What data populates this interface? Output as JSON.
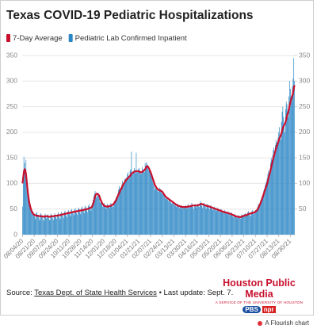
{
  "chart_data": {
    "type": "combo",
    "title": "Texas COVID-19 Pediatric Hospitalizations",
    "categories": [
      "08/04/20",
      null,
      null,
      null,
      null,
      null,
      null,
      null,
      null,
      null,
      null,
      null,
      null,
      null,
      null,
      null,
      null,
      "08/21/20",
      null,
      null,
      null,
      null,
      null,
      null,
      null,
      null,
      null,
      null,
      null,
      null,
      null,
      null,
      null,
      null,
      "09/07/20",
      null,
      null,
      null,
      null,
      null,
      null,
      null,
      null,
      null,
      null,
      null,
      null,
      null,
      null,
      null,
      null,
      "09/24/20",
      null,
      null,
      null,
      null,
      null,
      null,
      null,
      null,
      null,
      null,
      null,
      null,
      null,
      null,
      null,
      null,
      "10/11/20",
      null,
      null,
      null,
      null,
      null,
      null,
      null,
      null,
      null,
      null,
      null,
      null,
      null,
      null,
      null,
      null,
      "10/28/20",
      null,
      null,
      null,
      null,
      null,
      null,
      null,
      null,
      null,
      null,
      null,
      null,
      null,
      null,
      null,
      null,
      "11/14/20",
      null,
      null,
      null,
      null,
      null,
      null,
      null,
      null,
      null,
      null,
      null,
      null,
      null,
      null,
      null,
      null,
      "12/01/20",
      null,
      null,
      null,
      null,
      null,
      null,
      null,
      null,
      null,
      null,
      null,
      null,
      null,
      null,
      null,
      null,
      "12/18/20",
      null,
      null,
      null,
      null,
      null,
      null,
      null,
      null,
      null,
      null,
      null,
      null,
      null,
      null,
      null,
      null,
      "01/04/21",
      null,
      null,
      null,
      null,
      null,
      null,
      null,
      null,
      null,
      null,
      null,
      null,
      null,
      null,
      null,
      null,
      "01/21/21",
      null,
      null,
      null,
      null,
      null,
      null,
      null,
      null,
      null,
      null,
      null,
      null,
      null,
      null,
      null,
      null,
      "02/07/21",
      null,
      null,
      null,
      null,
      null,
      null,
      null,
      null,
      null,
      null,
      null,
      null,
      null,
      null,
      null,
      null,
      "02/24/21",
      null,
      null,
      null,
      null,
      null,
      null,
      null,
      null,
      null,
      null,
      null,
      null,
      null,
      null,
      null,
      null,
      "03/13/21",
      null,
      null,
      null,
      null,
      null,
      null,
      null,
      null,
      null,
      null,
      null,
      null,
      null,
      null,
      null,
      null,
      "03/30/21",
      null,
      null,
      null,
      null,
      null,
      null,
      null,
      null,
      null,
      null,
      null,
      null,
      null,
      null,
      null,
      null,
      "04/16/21",
      null,
      null,
      null,
      null,
      null,
      null,
      null,
      null,
      null,
      null,
      null,
      null,
      null,
      null,
      null,
      null,
      "05/03/21",
      null,
      null,
      null,
      null,
      null,
      null,
      null,
      null,
      null,
      null,
      null,
      null,
      null,
      null,
      null,
      null,
      "05/20/21",
      null,
      null,
      null,
      null,
      null,
      null,
      null,
      null,
      null,
      null,
      null,
      null,
      null,
      null,
      null,
      null,
      "06/06/21",
      null,
      null,
      null,
      null,
      null,
      null,
      null,
      null,
      null,
      null,
      null,
      null,
      null,
      null,
      null,
      null,
      "06/23/21",
      null,
      null,
      null,
      null,
      null,
      null,
      null,
      null,
      null,
      null,
      null,
      null,
      null,
      null,
      null,
      null,
      "07/10/21",
      null,
      null,
      null,
      null,
      null,
      null,
      null,
      null,
      null,
      null,
      null,
      null,
      null,
      null,
      null,
      null,
      "07/27/21",
      null,
      null,
      null,
      null,
      null,
      null,
      null,
      null,
      null,
      null,
      null,
      null,
      null,
      null,
      null,
      null,
      "08/13/21",
      null,
      null,
      null,
      null,
      null,
      null,
      null,
      null,
      null,
      null,
      null,
      null,
      null,
      null,
      null,
      null,
      "08/30/21",
      null,
      null,
      null,
      null,
      null,
      null
    ],
    "series": [
      {
        "name": "7-Day Average",
        "type": "line",
        "color": "#c8102e",
        "values": [
          100,
          112,
          122,
          128,
          126,
          119,
          106,
          92,
          80,
          70,
          62,
          56,
          51,
          47,
          44,
          42,
          40,
          39,
          38,
          38,
          37,
          37,
          37,
          37,
          36,
          36,
          36,
          36,
          36,
          36,
          35,
          35,
          35,
          36,
          36,
          36,
          36,
          36,
          35,
          35,
          35,
          35,
          36,
          36,
          36,
          36,
          36,
          37,
          37,
          37,
          37,
          37,
          38,
          38,
          38,
          38,
          39,
          39,
          39,
          40,
          40,
          40,
          41,
          41,
          41,
          42,
          42,
          42,
          42,
          43,
          43,
          43,
          44,
          44,
          44,
          45,
          45,
          45,
          45,
          46,
          46,
          46,
          46,
          47,
          47,
          47,
          47,
          48,
          48,
          48,
          49,
          49,
          49,
          50,
          50,
          50,
          51,
          51,
          52,
          52,
          53,
          54,
          56,
          60,
          64,
          70,
          75,
          78,
          80,
          80,
          79,
          78,
          76,
          72,
          68,
          65,
          62,
          60,
          58,
          57,
          56,
          56,
          55,
          55,
          55,
          55,
          55,
          56,
          56,
          57,
          57,
          58,
          59,
          60,
          62,
          64,
          66,
          69,
          72,
          75,
          78,
          81,
          84,
          87,
          89,
          92,
          95,
          98,
          100,
          102,
          104,
          106,
          108,
          109,
          111,
          112,
          113,
          115,
          117,
          119,
          120,
          121,
          122,
          123,
          123,
          124,
          124,
          124,
          124,
          124,
          123,
          123,
          122,
          122,
          122,
          123,
          124,
          125,
          126,
          128,
          130,
          133,
          134,
          133,
          131,
          128,
          125,
          122,
          118,
          114,
          110,
          106,
          102,
          98,
          95,
          93,
          91,
          89,
          88,
          87,
          87,
          86,
          86,
          85,
          84,
          82,
          80,
          78,
          76,
          74,
          73,
          72,
          71,
          70,
          69,
          68,
          67,
          66,
          65,
          64,
          63,
          62,
          61,
          60,
          59,
          58,
          57,
          57,
          56,
          56,
          55,
          55,
          55,
          54,
          54,
          54,
          54,
          54,
          54,
          54,
          54,
          55,
          55,
          55,
          55,
          56,
          56,
          56,
          57,
          57,
          57,
          57,
          57,
          57,
          57,
          57,
          58,
          58,
          58,
          59,
          60,
          60,
          60,
          59,
          59,
          58,
          58,
          57,
          57,
          56,
          56,
          56,
          55,
          55,
          54,
          54,
          53,
          53,
          52,
          52,
          51,
          51,
          50,
          50,
          49,
          49,
          48,
          48,
          47,
          47,
          46,
          46,
          45,
          45,
          44,
          44,
          44,
          43,
          43,
          42,
          42,
          42,
          41,
          41,
          40,
          40,
          39,
          39,
          38,
          37,
          37,
          36,
          36,
          35,
          35,
          35,
          35,
          34,
          34,
          35,
          35,
          36,
          36,
          37,
          37,
          38,
          38,
          38,
          39,
          40,
          40,
          41,
          41,
          41,
          42,
          42,
          43,
          43,
          43,
          44,
          45,
          46,
          47,
          49,
          51,
          54,
          57,
          60,
          64,
          67,
          71,
          75,
          79,
          83,
          87,
          91,
          95,
          99,
          104,
          110,
          115,
          120,
          125,
          131,
          137,
          143,
          148,
          153,
          158,
          163,
          168,
          172,
          176,
          180,
          184,
          188,
          191,
          194,
          198,
          203,
          208,
          212,
          214,
          216,
          220,
          225,
          231,
          236,
          240,
          246,
          253,
          258,
          263,
          268,
          272,
          278,
          285,
          292
        ]
      },
      {
        "name": "Pediatric Lab Confirmed Inpatient",
        "type": "bar",
        "color": "#2b86c5",
        "values": [
          55,
          125,
          152,
          140,
          128,
          146,
          112,
          96,
          82,
          70,
          62,
          57,
          50,
          46,
          42,
          46,
          39,
          40,
          35,
          30,
          42,
          44,
          38,
          36,
          32,
          28,
          40,
          42,
          37,
          35,
          30,
          27,
          38,
          41,
          36,
          32,
          38,
          40,
          35,
          30,
          28,
          39,
          41,
          36,
          33,
          29,
          38,
          42,
          37,
          34,
          31,
          40,
          44,
          38,
          33,
          30,
          42,
          45,
          40,
          36,
          32,
          44,
          47,
          42,
          38,
          34,
          45,
          48,
          44,
          40,
          36,
          48,
          50,
          45,
          41,
          38,
          49,
          52,
          46,
          42,
          39,
          50,
          53,
          48,
          44,
          40,
          52,
          55,
          50,
          46,
          42,
          54,
          57,
          52,
          48,
          44,
          56,
          60,
          55,
          50,
          47,
          58,
          62,
          68,
          75,
          80,
          85,
          78,
          72,
          76,
          82,
          80,
          70,
          64,
          62,
          68,
          60,
          55,
          58,
          62,
          58,
          54,
          50,
          56,
          60,
          58,
          54,
          52,
          58,
          62,
          60,
          56,
          54,
          62,
          66,
          64,
          70,
          75,
          72,
          80,
          88,
          95,
          90,
          92,
          85,
          98,
          105,
          100,
          102,
          108,
          110,
          104,
          112,
          118,
          122,
          115,
          110,
          125,
          128,
          162,
          120,
          118,
          124,
          130,
          126,
          120,
          160,
          125,
          122,
          128,
          130,
          126,
          120,
          118,
          124,
          132,
          128,
          125,
          122,
          140,
          135,
          142,
          138,
          130,
          126,
          128,
          124,
          122,
          118,
          110,
          105,
          100,
          96,
          88,
          92,
          95,
          90,
          86,
          84,
          88,
          92,
          90,
          86,
          82,
          80,
          84,
          78,
          76,
          72,
          70,
          74,
          72,
          68,
          66,
          70,
          68,
          64,
          62,
          60,
          66,
          64,
          60,
          58,
          62,
          56,
          54,
          58,
          60,
          56,
          52,
          55,
          58,
          54,
          50,
          53,
          56,
          52,
          55,
          58,
          54,
          50,
          56,
          60,
          56,
          52,
          55,
          58,
          62,
          58,
          54,
          50,
          56,
          60,
          57,
          53,
          56,
          60,
          58,
          54,
          62,
          66,
          60,
          56,
          52,
          58,
          62,
          58,
          55,
          50,
          56,
          60,
          56,
          52,
          50,
          56,
          58,
          54,
          50,
          48,
          52,
          55,
          50,
          48,
          46,
          50,
          53,
          49,
          46,
          44,
          48,
          50,
          46,
          44,
          42,
          46,
          48,
          44,
          42,
          40,
          44,
          46,
          42,
          40,
          38,
          42,
          44,
          38,
          36,
          34,
          38,
          40,
          36,
          34,
          32,
          36,
          38,
          35,
          33,
          31,
          36,
          40,
          38,
          36,
          38,
          40,
          42,
          38,
          36,
          40,
          44,
          46,
          42,
          38,
          36,
          42,
          46,
          48,
          44,
          40,
          44,
          48,
          46,
          50,
          54,
          58,
          60,
          56,
          62,
          68,
          72,
          76,
          80,
          86,
          90,
          96,
          100,
          104,
          110,
          118,
          125,
          122,
          128,
          140,
          150,
          146,
          155,
          165,
          170,
          160,
          175,
          185,
          180,
          178,
          190,
          200,
          210,
          195,
          185,
          220,
          240,
          250,
          230,
          215,
          200,
          245,
          260,
          255,
          240,
          230,
          270,
          300,
          285,
          270,
          260,
          290,
          305,
          345,
          300
        ]
      }
    ],
    "ylim": [
      0,
      350
    ],
    "yticks": [
      0,
      50,
      100,
      150,
      200,
      250,
      300,
      350
    ],
    "y2lim": [
      0,
      350
    ],
    "y2ticks": [
      50,
      100,
      150,
      200,
      250,
      300,
      350
    ],
    "grid": true
  },
  "footer": {
    "source_label": "Source:",
    "source_link": "Texas Dept. of State Health Services",
    "update": "• Last update: Sept. 7."
  },
  "branding": {
    "name": "Houston Public Media",
    "tagline": "A SERVICE OF THE UNIVERSITY OF HOUSTON",
    "pbs": "PBS",
    "npr": "npr",
    "flourish": "A Flourish chart"
  }
}
